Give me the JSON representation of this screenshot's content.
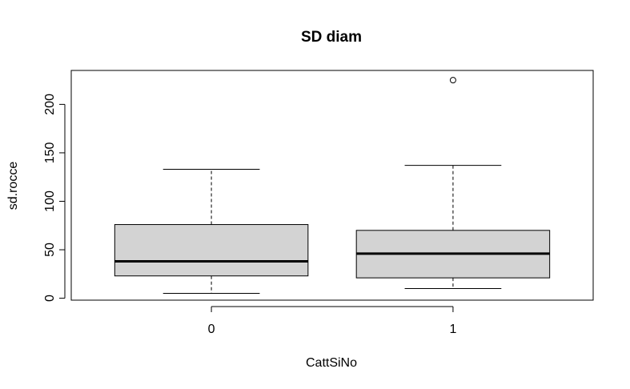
{
  "chart_data": {
    "type": "boxplot",
    "title": "SD diam",
    "xlabel": "CattSiNo",
    "ylabel": "sd.rocce",
    "categories": [
      "0",
      "1"
    ],
    "ylim": [
      -2,
      235
    ],
    "yticks": [
      0,
      50,
      100,
      150,
      200
    ],
    "box_fill": "#d3d3d3",
    "boxes": [
      {
        "category": "0",
        "whisker_low": 5,
        "q1": 23,
        "median": 38,
        "q3": 76,
        "whisker_high": 133,
        "outliers": []
      },
      {
        "category": "1",
        "whisker_low": 10,
        "q1": 21,
        "median": 46,
        "q3": 70,
        "whisker_high": 137,
        "outliers": [
          225
        ]
      }
    ]
  }
}
